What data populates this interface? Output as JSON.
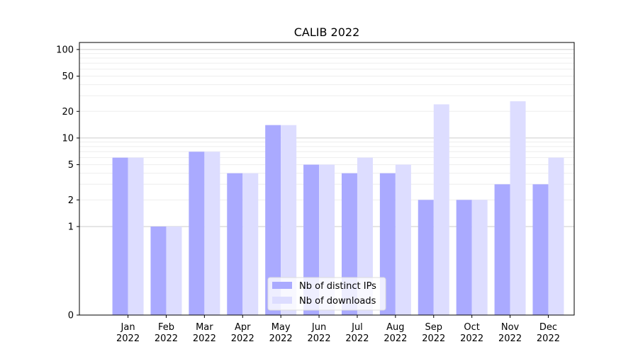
{
  "chart_data": {
    "type": "bar",
    "title": "CALIB 2022",
    "xlabel": "",
    "ylabel": "",
    "yscale": "symlog",
    "ylim": [
      0,
      120
    ],
    "y_ticks": [
      0,
      1,
      2,
      5,
      10,
      20,
      50,
      100
    ],
    "y_tick_labels": [
      "0",
      "1",
      "2",
      "5",
      "10",
      "20",
      "50",
      "100"
    ],
    "grid": "horizontal",
    "categories": [
      "Jan\n2022",
      "Feb\n2022",
      "Mar\n2022",
      "Apr\n2022",
      "May\n2022",
      "Jun\n2022",
      "Jul\n2022",
      "Aug\n2022",
      "Sep\n2022",
      "Oct\n2022",
      "Nov\n2022",
      "Dec\n2022"
    ],
    "series": [
      {
        "name": "Nb of distinct IPs",
        "color": "#aaaaff",
        "values": [
          6,
          1,
          7,
          4,
          14,
          5,
          4,
          4,
          2,
          2,
          3,
          3
        ]
      },
      {
        "name": "Nb of downloads",
        "color": "#ddddff",
        "values": [
          6,
          1,
          7,
          4,
          14,
          5,
          6,
          5,
          24,
          2,
          26,
          6
        ]
      }
    ],
    "legend_position": "lower-center"
  }
}
